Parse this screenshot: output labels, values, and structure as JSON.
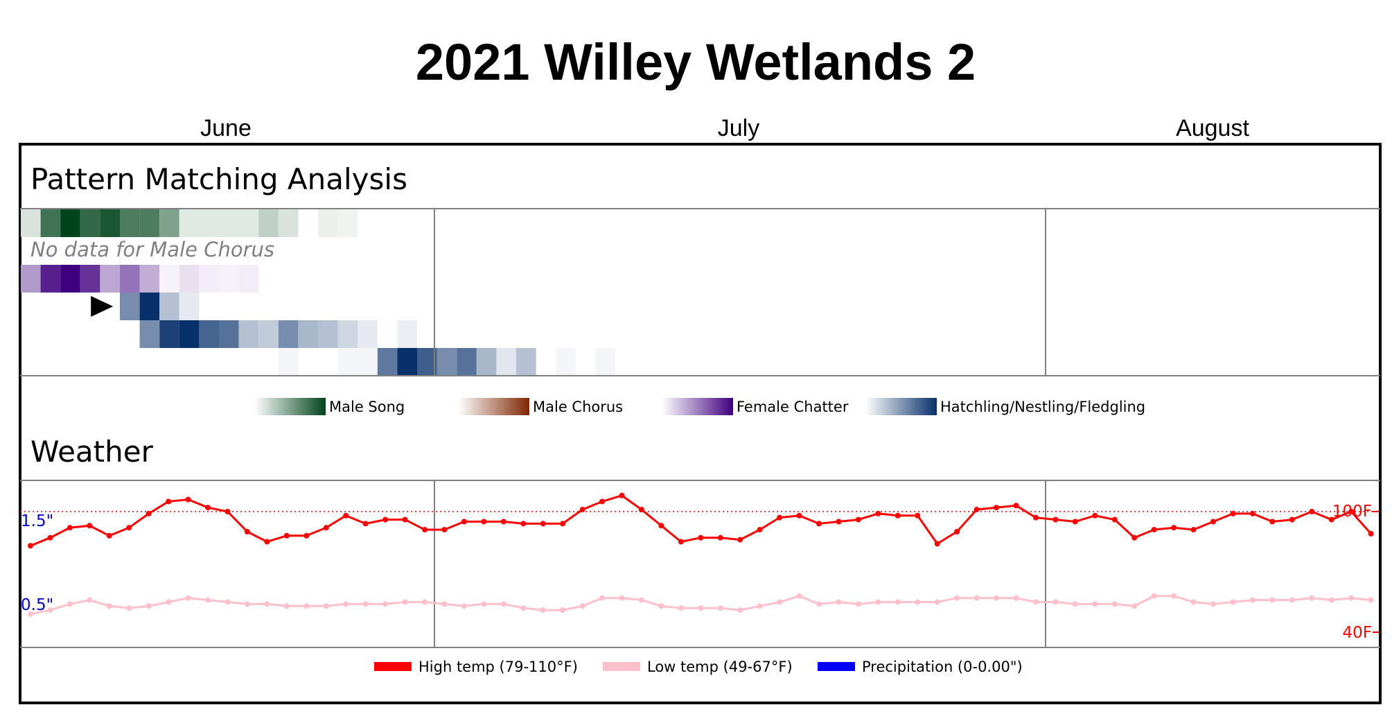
{
  "title": "2021 Willey Wetlands 2",
  "months": [
    "June",
    "July",
    "August"
  ],
  "sections": {
    "pattern": "Pattern Matching Analysis",
    "weather": "Weather"
  },
  "no_data_note": "No data for Male Chorus",
  "colors": {
    "frame": "#000000",
    "divider": "#808080",
    "high": "#ff0000",
    "low": "#ffc0cb",
    "precip": "#0000ff"
  },
  "chart_data": {
    "type": "heatmap",
    "days_per_row": 69,
    "month_start_columns": [
      0,
      21,
      52
    ],
    "heatmap_rows": [
      {
        "name": "Male Song",
        "color": "#00441b",
        "cells": [
          [
            0,
            0.15
          ],
          [
            1,
            0.75
          ],
          [
            2,
            1.0
          ],
          [
            3,
            0.8
          ],
          [
            4,
            0.9
          ],
          [
            5,
            0.7
          ],
          [
            6,
            0.7
          ],
          [
            7,
            0.5
          ],
          [
            8,
            0.12
          ],
          [
            9,
            0.12
          ],
          [
            10,
            0.12
          ],
          [
            11,
            0.12
          ],
          [
            12,
            0.25
          ],
          [
            13,
            0.15
          ],
          [
            15,
            0.08
          ],
          [
            16,
            0.06
          ]
        ]
      },
      {
        "name": "Male Chorus",
        "color": "#7f2704",
        "cells": [],
        "no_data": true
      },
      {
        "name": "Female Chatter",
        "color": "#3f007d",
        "cells": [
          [
            0,
            0.4
          ],
          [
            1,
            0.88
          ],
          [
            2,
            1.0
          ],
          [
            3,
            0.8
          ],
          [
            4,
            0.35
          ],
          [
            5,
            0.55
          ],
          [
            6,
            0.32
          ],
          [
            7,
            0.05
          ],
          [
            8,
            0.12
          ],
          [
            9,
            0.07
          ],
          [
            10,
            0.05
          ],
          [
            11,
            0.07
          ]
        ]
      },
      {
        "name": "Hatchling/Nestling/Fledgling",
        "color": "#08306b",
        "marker_column": 2,
        "cells": [
          [
            5,
            0.55
          ],
          [
            6,
            1.0
          ],
          [
            7,
            0.3
          ],
          [
            8,
            0.1
          ]
        ]
      },
      {
        "name": "Hatchling/Nestling/Fledgling",
        "color": "#08306b",
        "cells": [
          [
            6,
            0.55
          ],
          [
            7,
            0.92
          ],
          [
            8,
            1.0
          ],
          [
            9,
            0.75
          ],
          [
            10,
            0.68
          ],
          [
            11,
            0.3
          ],
          [
            12,
            0.25
          ],
          [
            13,
            0.55
          ],
          [
            14,
            0.35
          ],
          [
            15,
            0.3
          ],
          [
            16,
            0.2
          ],
          [
            17,
            0.1
          ],
          [
            19,
            0.08
          ]
        ]
      },
      {
        "name": "Hatchling/Nestling/Fledgling",
        "color": "#08306b",
        "cells": [
          [
            13,
            0.05
          ],
          [
            16,
            0.05
          ],
          [
            17,
            0.05
          ],
          [
            18,
            0.65
          ],
          [
            19,
            1.0
          ],
          [
            20,
            0.78
          ],
          [
            21,
            0.55
          ],
          [
            22,
            0.68
          ],
          [
            23,
            0.35
          ],
          [
            24,
            0.12
          ],
          [
            25,
            0.3
          ],
          [
            27,
            0.05
          ],
          [
            29,
            0.05
          ]
        ]
      }
    ],
    "legend": [
      {
        "label": "Male Song",
        "color": "#00441b"
      },
      {
        "label": "Male Chorus",
        "color": "#7f2704"
      },
      {
        "label": "Female Chatter",
        "color": "#3f007d"
      },
      {
        "label": "Hatchling/Nestling/Fledgling",
        "color": "#08306b"
      }
    ],
    "weather": {
      "temp_range": [
        40,
        100
      ],
      "temp_axis_labels": [
        "100F",
        "40F"
      ],
      "precip_axis_labels": [
        "1.5\"",
        "0.5\""
      ],
      "precip_range": [
        0,
        2
      ],
      "reference_line": 100,
      "high_temps": [
        83,
        87,
        92,
        93,
        88,
        92,
        99,
        105,
        106,
        102,
        100,
        90,
        85,
        88,
        88,
        92,
        98,
        94,
        96,
        96,
        91,
        91,
        95,
        95,
        95,
        94,
        94,
        94,
        101,
        105,
        108,
        101,
        93,
        85,
        87,
        87,
        86,
        91,
        97,
        98,
        94,
        95,
        96,
        99,
        98,
        98,
        84,
        90,
        101,
        102,
        103,
        97,
        96,
        95,
        98,
        96,
        87,
        91,
        92,
        91,
        95,
        99,
        99,
        95,
        96,
        100,
        96,
        100,
        89
      ],
      "low_temps": [
        49,
        51,
        54,
        56,
        53,
        52,
        53,
        55,
        57,
        56,
        55,
        54,
        54,
        53,
        53,
        53,
        54,
        54,
        54,
        55,
        55,
        54,
        53,
        54,
        54,
        52,
        51,
        51,
        53,
        57,
        57,
        56,
        53,
        52,
        52,
        52,
        51,
        53,
        55,
        58,
        54,
        55,
        54,
        55,
        55,
        55,
        55,
        57,
        57,
        57,
        57,
        55,
        55,
        54,
        54,
        54,
        53,
        58,
        58,
        55,
        54,
        55,
        56,
        56,
        56,
        57,
        56,
        57,
        56
      ],
      "legend": [
        {
          "label": "High temp (79-110°F)",
          "color": "#ff0000"
        },
        {
          "label": "Low temp (49-67°F)",
          "color": "#ffc0cb"
        },
        {
          "label": "Precipitation (0-0.00\")",
          "color": "#0000ff"
        }
      ]
    }
  }
}
